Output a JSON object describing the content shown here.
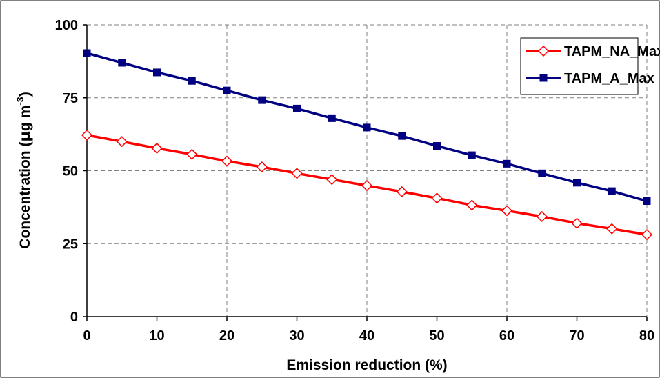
{
  "chart_data": {
    "type": "line",
    "xlabel": "Emission reduction (%)",
    "ylabel": {
      "prefix": "Concentration (",
      "mu": "μ",
      "unit_main": "g m",
      "superscript": "-3",
      "suffix": ")"
    },
    "xlim": [
      0,
      80
    ],
    "ylim": [
      0,
      100
    ],
    "x_ticks": [
      0,
      10,
      20,
      30,
      40,
      50,
      60,
      70,
      80
    ],
    "y_ticks": [
      0,
      25,
      50,
      75,
      100
    ],
    "x_tick_labels": [
      "0",
      "10",
      "20",
      "30",
      "40",
      "50",
      "60",
      "70",
      "80"
    ],
    "y_tick_labels": [
      "0",
      "25",
      "50",
      "75",
      "100"
    ],
    "grid": true,
    "legend_position": "top-right",
    "x": [
      0,
      5,
      10,
      15,
      20,
      25,
      30,
      35,
      40,
      45,
      50,
      55,
      60,
      65,
      70,
      75,
      80
    ],
    "series": [
      {
        "name": "TAPM_NA_Max",
        "color": "#ff0000",
        "marker": "open-diamond",
        "values": [
          62.2,
          60.0,
          57.7,
          55.6,
          53.3,
          51.3,
          49.1,
          47.0,
          44.9,
          42.8,
          40.6,
          38.2,
          36.3,
          34.3,
          32.0,
          30.1,
          28.1
        ]
      },
      {
        "name": "TAPM_A_Max",
        "color": "#000080",
        "marker": "filled-square",
        "values": [
          90.3,
          87.0,
          83.7,
          80.8,
          77.5,
          74.2,
          71.3,
          68.0,
          64.8,
          61.9,
          58.5,
          55.3,
          52.4,
          49.1,
          45.9,
          43.0,
          39.6
        ]
      }
    ]
  }
}
